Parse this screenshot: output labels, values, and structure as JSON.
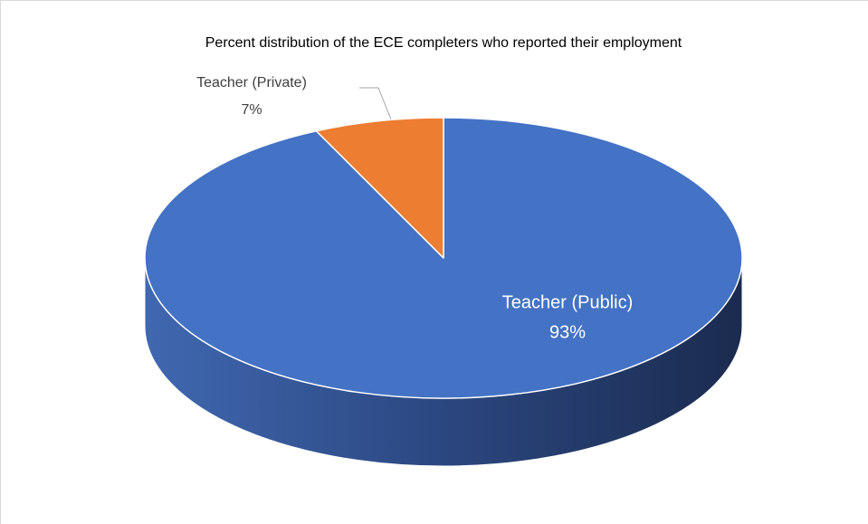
{
  "chart_data": {
    "type": "pie3d",
    "title": "Percent distribution of the ECE completers who reported their employment",
    "categories": [
      "Teacher (Public)",
      "Teacher (Private)"
    ],
    "values": [
      93,
      7
    ],
    "value_labels": [
      "93%",
      "7%"
    ],
    "colors": [
      "#4472c4",
      "#ed7d31"
    ]
  }
}
